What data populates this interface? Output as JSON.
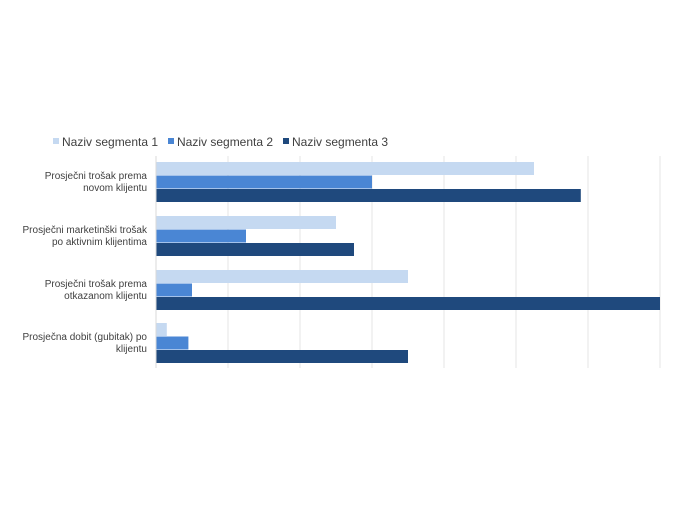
{
  "chart_data": {
    "type": "bar",
    "orientation": "horizontal",
    "categories": [
      [
        "Prosječni trošak prema",
        "novom klijentu"
      ],
      [
        "Prosječni marketinški trošak",
        "po aktivnim klijentima"
      ],
      [
        "Prosječni trošak prema",
        "otkazanom klijentu"
      ],
      [
        "Prosječna dobit (gubitak) po",
        "klijentu"
      ]
    ],
    "series": [
      {
        "name": "Naziv segmenta 1",
        "color": "#c5d9f1",
        "values": [
          105,
          50,
          70,
          3
        ]
      },
      {
        "name": "Naziv segmenta 2",
        "color": "#4a86d4",
        "values": [
          60,
          25,
          10,
          9
        ]
      },
      {
        "name": "Naziv segmenta 3",
        "color": "#1f497d",
        "values": [
          118,
          55,
          140,
          70
        ]
      }
    ],
    "xlim": [
      0,
      140
    ],
    "grid": true,
    "tick_labels_shown": false,
    "legend_position": "top-left",
    "title": "",
    "xlabel": "",
    "ylabel": ""
  }
}
